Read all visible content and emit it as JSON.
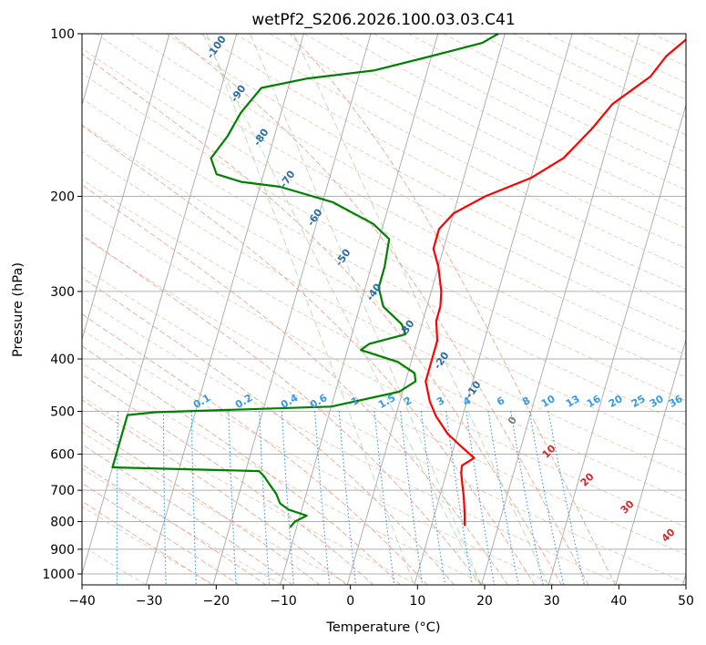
{
  "chart_data": {
    "type": "skew-t log-p",
    "title": "wetPf2_S206.2026.100.03.03.C41",
    "xlabel": "Temperature (°C)",
    "ylabel": "Pressure (hPa)",
    "xlim": [
      -40,
      50
    ],
    "ylim": [
      1050,
      100
    ],
    "y_scale": "log",
    "x_ticks": [
      "−40",
      "−30",
      "−20",
      "−10",
      "0",
      "10",
      "20",
      "30",
      "40",
      "50"
    ],
    "y_ticks": [
      "100",
      "200",
      "300",
      "400",
      "500",
      "600",
      "700",
      "800",
      "900",
      "1000"
    ],
    "grid": true,
    "series": [
      {
        "color": "#ff0000",
        "points": [
          {
            "p": 815,
            "t": 15.0
          },
          {
            "p": 770,
            "t": 14.4
          },
          {
            "p": 720,
            "t": 13.6
          },
          {
            "p": 680,
            "t": 12.8
          },
          {
            "p": 650,
            "t": 12.2
          },
          {
            "p": 630,
            "t": 12.0
          },
          {
            "p": 610,
            "t": 13.5
          },
          {
            "p": 580,
            "t": 11.0
          },
          {
            "p": 550,
            "t": 8.5
          },
          {
            "p": 510,
            "t": 6.0
          },
          {
            "p": 480,
            "t": 4.5
          },
          {
            "p": 440,
            "t": 3.0
          },
          {
            "p": 400,
            "t": 3.0
          },
          {
            "p": 370,
            "t": 3.0
          },
          {
            "p": 340,
            "t": 2.0
          },
          {
            "p": 320,
            "t": 2.0
          },
          {
            "p": 300,
            "t": 1.5
          },
          {
            "p": 270,
            "t": 0.0
          },
          {
            "p": 250,
            "t": -1.5
          },
          {
            "p": 230,
            "t": -1.5
          },
          {
            "p": 215,
            "t": 0.0
          },
          {
            "p": 200,
            "t": 4.0
          },
          {
            "p": 185,
            "t": 10.0
          },
          {
            "p": 170,
            "t": 14.0
          },
          {
            "p": 150,
            "t": 17.0
          },
          {
            "p": 135,
            "t": 19.0
          },
          {
            "p": 120,
            "t": 23.5
          },
          {
            "p": 110,
            "t": 25.0
          },
          {
            "p": 100,
            "t": 28.0
          }
        ]
      },
      {
        "color": "#008000",
        "points": [
          {
            "p": 820,
            "t": -11.0
          },
          {
            "p": 800,
            "t": -10.5
          },
          {
            "p": 780,
            "t": -9.0
          },
          {
            "p": 760,
            "t": -12.0
          },
          {
            "p": 740,
            "t": -13.5
          },
          {
            "p": 710,
            "t": -14.5
          },
          {
            "p": 680,
            "t": -16.0
          },
          {
            "p": 660,
            "t": -17.0
          },
          {
            "p": 645,
            "t": -18.0
          },
          {
            "p": 635,
            "t": -40.0
          },
          {
            "p": 508,
            "t": -40.0
          },
          {
            "p": 502,
            "t": -36.0
          },
          {
            "p": 490,
            "t": -10.0
          },
          {
            "p": 460,
            "t": -0.5
          },
          {
            "p": 440,
            "t": 1.5
          },
          {
            "p": 425,
            "t": 1.0
          },
          {
            "p": 405,
            "t": -2.0
          },
          {
            "p": 385,
            "t": -8.0
          },
          {
            "p": 375,
            "t": -7.0
          },
          {
            "p": 360,
            "t": -2.0
          },
          {
            "p": 345,
            "t": -3.0
          },
          {
            "p": 320,
            "t": -6.5
          },
          {
            "p": 295,
            "t": -8.0
          },
          {
            "p": 270,
            "t": -8.0
          },
          {
            "p": 240,
            "t": -8.5
          },
          {
            "p": 225,
            "t": -11.5
          },
          {
            "p": 205,
            "t": -18.5
          },
          {
            "p": 192,
            "t": -27.0
          },
          {
            "p": 188,
            "t": -33.0
          },
          {
            "p": 182,
            "t": -37.0
          },
          {
            "p": 170,
            "t": -38.5
          },
          {
            "p": 155,
            "t": -37.0
          },
          {
            "p": 140,
            "t": -36.0
          },
          {
            "p": 126,
            "t": -34.0
          },
          {
            "p": 121,
            "t": -27.5
          },
          {
            "p": 117,
            "t": -18.0
          },
          {
            "p": 110,
            "t": -10.0
          },
          {
            "p": 104,
            "t": -3.0
          },
          {
            "p": 100,
            "t": -1.0
          }
        ]
      }
    ],
    "dry_adiabat_labels": [
      "-100",
      "-90",
      "-80",
      "-70",
      "-60",
      "-50",
      "-40",
      "-30",
      "-20",
      "-10",
      "0"
    ],
    "mixing_ratio_labels": [
      "0.1",
      "0.2",
      "0.4",
      "0.6",
      "1",
      "1.5",
      "2",
      "3",
      "4",
      "6",
      "8",
      "10",
      "13",
      "16",
      "20",
      "25",
      "30",
      "36"
    ],
    "moist_adiabat_labels": [
      "10",
      "20",
      "30",
      "40"
    ]
  }
}
